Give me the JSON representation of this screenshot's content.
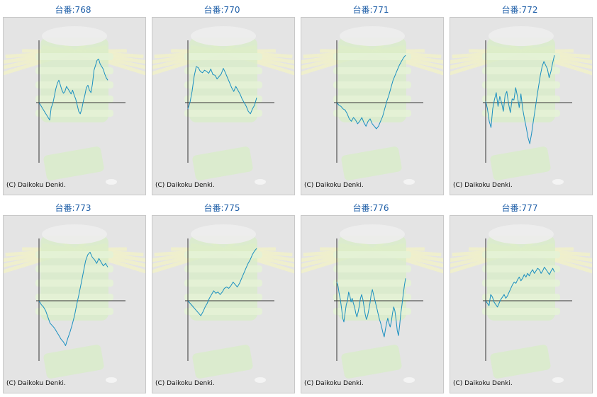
{
  "copyright": "(C) Daikoku Denki.",
  "line_color": "#1a8fc0",
  "axis_color": "#333333",
  "title_color": "#1f5fa8",
  "chart_data": [
    {
      "type": "line",
      "title": "台番:768",
      "values": [
        0,
        -4,
        -8,
        -12,
        -16,
        -20,
        -24,
        -28,
        -8,
        -2,
        10,
        22,
        31,
        36,
        28,
        20,
        15,
        18,
        26,
        22,
        18,
        14,
        20,
        12,
        6,
        -4,
        -14,
        -18,
        -10,
        2,
        12,
        24,
        28,
        20,
        16,
        30,
        52,
        60,
        68,
        70,
        62,
        58,
        54,
        46,
        40,
        36
      ]
    },
    {
      "type": "line",
      "title": "台番:770",
      "values": [
        -10,
        0,
        18,
        42,
        58,
        56,
        50,
        48,
        52,
        50,
        47,
        54,
        45,
        44,
        38,
        42,
        46,
        55,
        48,
        40,
        32,
        24,
        18,
        26,
        20,
        14,
        6,
        0,
        -6,
        -14,
        -18,
        -10,
        -4,
        8
      ]
    },
    {
      "type": "line",
      "title": "台番:771",
      "values": [
        0,
        -4,
        -6,
        -10,
        -12,
        -18,
        -26,
        -30,
        -24,
        -28,
        -34,
        -30,
        -24,
        -32,
        -38,
        -30,
        -26,
        -34,
        -38,
        -42,
        -38,
        -30,
        -22,
        -10,
        2,
        12,
        24,
        36,
        44,
        52,
        60,
        66,
        72,
        76
      ]
    },
    {
      "type": "line",
      "title": "台番:772",
      "values": [
        2,
        -10,
        -30,
        -40,
        -10,
        5,
        16,
        -6,
        10,
        0,
        -14,
        12,
        18,
        -2,
        -16,
        6,
        4,
        24,
        10,
        -8,
        14,
        -10,
        -26,
        -40,
        -56,
        -66,
        -50,
        -30,
        -12,
        8,
        26,
        44,
        58,
        66,
        60,
        54,
        40,
        50,
        64,
        76
      ]
    },
    {
      "type": "line",
      "title": "台番:773",
      "values": [
        0,
        -6,
        -10,
        -16,
        -26,
        -36,
        -40,
        -44,
        -50,
        -56,
        -62,
        -66,
        -72,
        -60,
        -50,
        -38,
        -24,
        -6,
        10,
        28,
        46,
        64,
        74,
        78,
        70,
        66,
        60,
        68,
        62,
        56,
        60,
        54
      ]
    },
    {
      "type": "line",
      "title": "台番:775",
      "values": [
        0,
        -4,
        -8,
        -12,
        -16,
        -20,
        -24,
        -18,
        -10,
        -4,
        4,
        10,
        16,
        12,
        14,
        10,
        14,
        20,
        22,
        20,
        24,
        30,
        26,
        22,
        28,
        36,
        44,
        52,
        60,
        66,
        74,
        80,
        84
      ]
    },
    {
      "type": "line",
      "title": "台番:776",
      "values": [
        30,
        24,
        12,
        2,
        -12,
        -28,
        -34,
        -20,
        -6,
        0,
        14,
        8,
        -2,
        4,
        -4,
        -10,
        -20,
        -26,
        -18,
        -8,
        4,
        10,
        2,
        -10,
        -22,
        -30,
        -24,
        -14,
        -4,
        10,
        18,
        10,
        2,
        -6,
        -14,
        -22,
        -30,
        -36,
        -44,
        -52,
        -58,
        -46,
        -36,
        -28,
        -36,
        -42,
        -34,
        -20,
        -10,
        -16,
        -30,
        -48,
        -56,
        -40,
        -20,
        -6,
        10,
        24,
        36
      ]
    },
    {
      "type": "line",
      "title": "台番:777",
      "values": [
        0,
        -4,
        -8,
        10,
        6,
        -2,
        -6,
        -10,
        -4,
        2,
        6,
        10,
        4,
        8,
        14,
        20,
        26,
        30,
        28,
        34,
        38,
        32,
        36,
        42,
        38,
        44,
        40,
        46,
        50,
        44,
        48,
        52,
        50,
        44,
        48,
        54,
        50,
        46,
        42,
        48,
        52,
        46
      ]
    }
  ]
}
